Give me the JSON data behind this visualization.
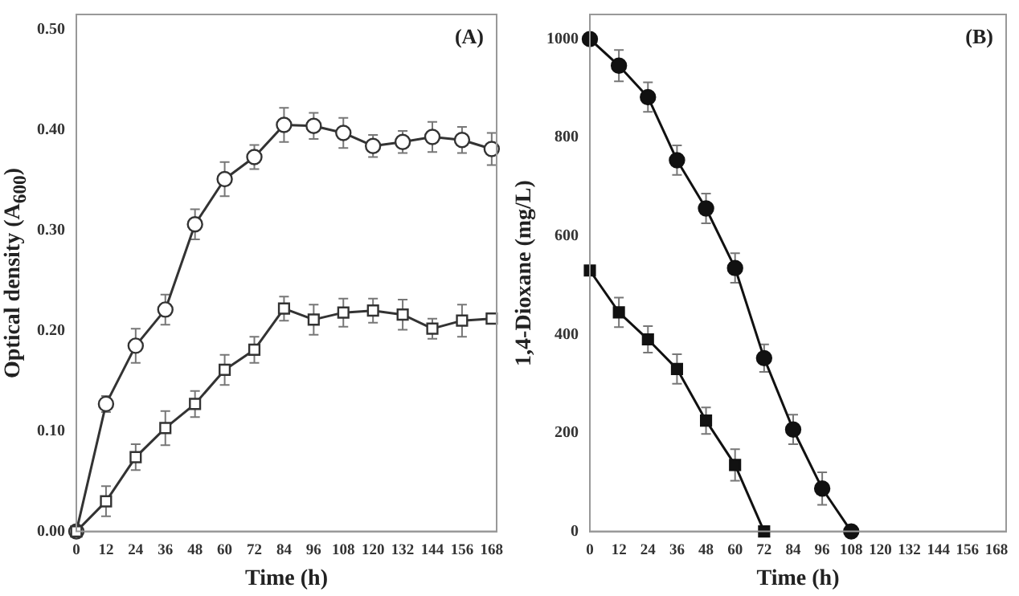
{
  "chart_data": [
    {
      "type": "line",
      "xlabel": "Time (h)",
      "ylabel": "Optical density (A$_{600}$)",
      "annotations": [
        "(A)"
      ],
      "x": [
        0,
        12,
        24,
        36,
        48,
        60,
        72,
        84,
        96,
        108,
        120,
        132,
        144,
        156,
        168
      ],
      "xlim": [
        0,
        170
      ],
      "xticks": [
        0,
        12,
        24,
        36,
        48,
        60,
        72,
        84,
        96,
        108,
        120,
        132,
        144,
        156,
        168
      ],
      "ylim": [
        0,
        0.515
      ],
      "yticks": [
        {
          "value": 0,
          "label": "0.00"
        },
        {
          "value": 0.1,
          "label": "0.10"
        },
        {
          "value": 0.2,
          "label": "0.20"
        },
        {
          "value": 0.3,
          "label": "0.30"
        },
        {
          "value": 0.4,
          "label": "0.40"
        },
        {
          "value": 0.5,
          "label": "0.50"
        }
      ],
      "grid": false,
      "legend": false,
      "series": [
        {
          "color": "#333333",
          "marker": "circle",
          "values": [
            0,
            0.127,
            0.185,
            0.221,
            0.306,
            0.351,
            0.373,
            0.405,
            0.404,
            0.397,
            0.384,
            0.388,
            0.393,
            0.39,
            0.381
          ],
          "errors": [
            null,
            0.008,
            0.017,
            0.015,
            0.015,
            0.017,
            0.012,
            0.017,
            0.013,
            0.015,
            0.011,
            0.011,
            0.015,
            0.013,
            0.016
          ]
        },
        {
          "color": "#333333",
          "marker": "square",
          "values": [
            0,
            0.03,
            0.074,
            0.103,
            0.127,
            0.161,
            0.181,
            0.222,
            0.211,
            0.218,
            0.22,
            0.216,
            0.202,
            0.21,
            0.212
          ],
          "errors": [
            null,
            0.015,
            0.013,
            0.017,
            0.013,
            0.015,
            0.013,
            0.012,
            0.015,
            0.014,
            0.012,
            0.015,
            0.01,
            0.016,
            null
          ]
        }
      ]
    },
    {
      "type": "line",
      "xlabel": "Time (h)",
      "ylabel": "1,4-Dioxane (mg/L)",
      "annotations": [
        "(B)"
      ],
      "xlim": [
        0,
        172
      ],
      "xticks": [
        0,
        12,
        24,
        36,
        48,
        60,
        72,
        84,
        96,
        108,
        120,
        132,
        144,
        156,
        168
      ],
      "ylim": [
        0,
        1050
      ],
      "yticks": [
        0,
        200,
        400,
        600,
        800,
        1000
      ],
      "grid": false,
      "legend": false,
      "series": [
        {
          "color": "#111111",
          "marker": "circle",
          "x": [
            0,
            12,
            24,
            36,
            48,
            60,
            72,
            84,
            96,
            108
          ],
          "values": [
            1000,
            946,
            882,
            754,
            656,
            535,
            352,
            207,
            87,
            0
          ],
          "errors": [
            null,
            32,
            30,
            30,
            30,
            30,
            28,
            30,
            33,
            null
          ]
        },
        {
          "color": "#111111",
          "marker": "square",
          "x": [
            0,
            12,
            24,
            36,
            48,
            60,
            72
          ],
          "values": [
            530,
            445,
            390,
            330,
            225,
            135,
            0
          ],
          "errors": [
            null,
            30,
            27,
            30,
            27,
            32,
            null
          ]
        }
      ]
    }
  ]
}
